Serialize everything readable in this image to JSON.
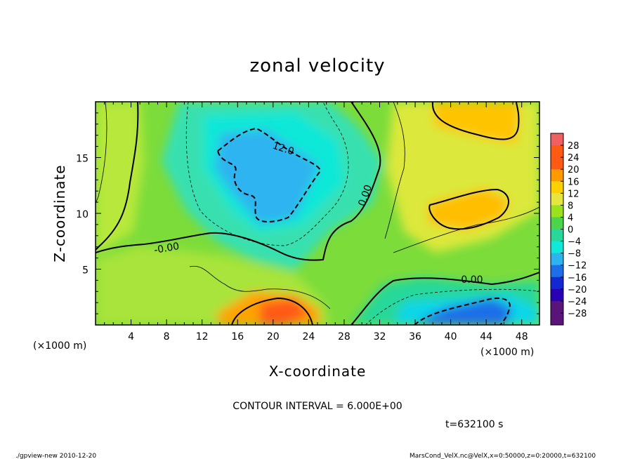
{
  "chart_data": {
    "type": "heatmap",
    "title": "zonal velocity",
    "xlabel": "X-coordinate",
    "ylabel": "Z-coordinate",
    "x_unit": "(×1000 m)",
    "y_unit": "(×1000 m)",
    "xlim": [
      0,
      50
    ],
    "ylim": [
      0,
      20
    ],
    "x_ticks": [
      4,
      8,
      12,
      16,
      20,
      24,
      28,
      32,
      36,
      40,
      44,
      48
    ],
    "y_ticks": [
      5,
      10,
      15
    ],
    "colorbar_levels": [
      28,
      24,
      20,
      16,
      12,
      8,
      4,
      0,
      -4,
      -8,
      -12,
      -16,
      -20,
      -24,
      -28
    ],
    "contour_labels": [
      "12.0",
      "0.00",
      "-0.00",
      "0.00"
    ],
    "contour_interval_text": "CONTOUR INTERVAL = 6.000E+00",
    "time_text": "t=632100 s",
    "footer_left": "./gpview-new  2010-12-20",
    "footer_right": "MarsCond_VelX.nc@VelX,x=0:50000,z=0:20000,t=632100",
    "colors": {
      "pos28": "#f06060",
      "pos20": "#ff5a14",
      "pos16": "#ff9a00",
      "pos12": "#ffd000",
      "pos8": "#e6e640",
      "pos4": "#9be21e",
      "zero": "#4cd44c",
      "neg4": "#27d89a",
      "neg8": "#10e8d8",
      "neg12": "#2db4f0",
      "neg16": "#1e6ee8",
      "neg20": "#1428d2",
      "neg24": "#2a00b4",
      "neg28": "#5a147a"
    }
  }
}
